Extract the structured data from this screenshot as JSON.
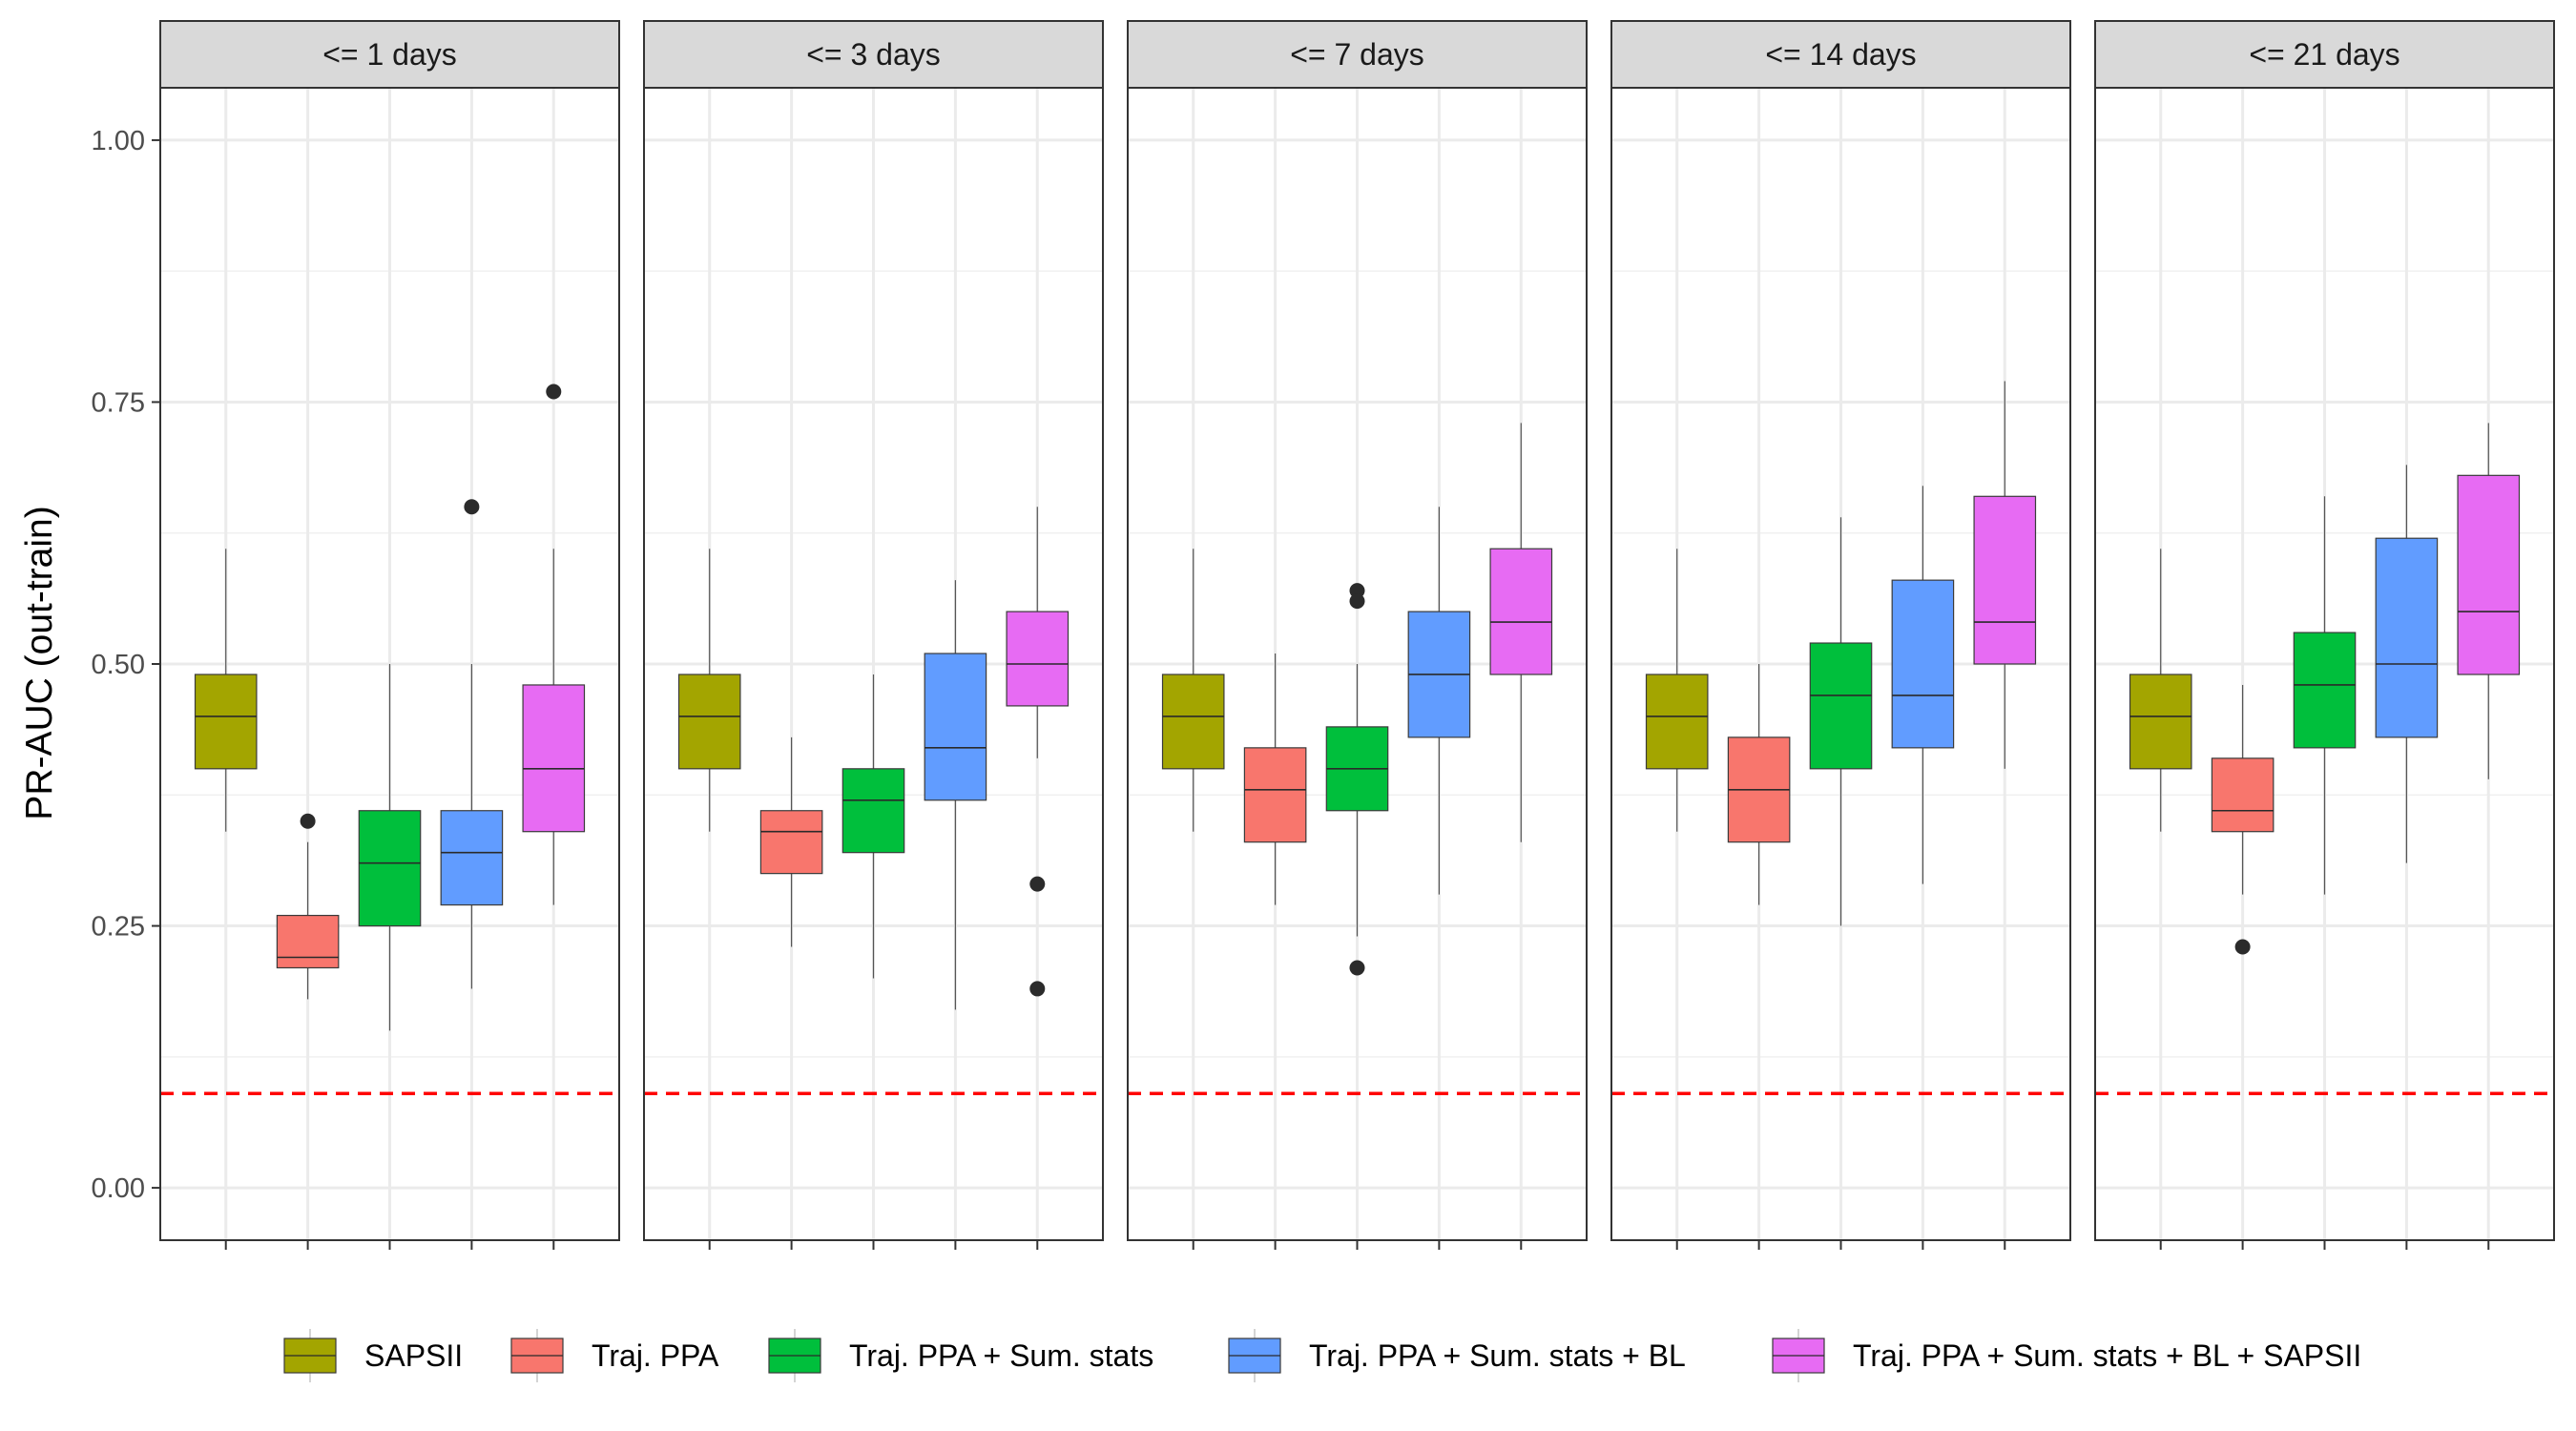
{
  "chart_data": {
    "type": "boxplot",
    "title": "",
    "ylabel": "PR-AUC (out-train)",
    "xlabel": "",
    "ylim": [
      -0.05,
      1.05
    ],
    "yticks": [
      0.0,
      0.25,
      0.5,
      0.75,
      1.0
    ],
    "ytick_labels": [
      "0.00",
      "0.25",
      "0.50",
      "0.75",
      "1.00"
    ],
    "grid": true,
    "legend_position": "bottom",
    "reference_line": {
      "y": 0.09,
      "color": "#ff0000",
      "style": "dashed"
    },
    "series": [
      {
        "name": "SAPSII",
        "color": "#a3a500"
      },
      {
        "name": "Traj. PPA",
        "color": "#f8766d"
      },
      {
        "name": "Traj. PPA + Sum. stats",
        "color": "#00bf3c"
      },
      {
        "name": "Traj. PPA + Sum. stats + BL",
        "color": "#619cff"
      },
      {
        "name": "Traj. PPA + Sum. stats + BL + SAPSII",
        "color": "#e76bf3"
      }
    ],
    "facets": [
      {
        "label": "<= 1 days",
        "boxes": [
          {
            "series": "SAPSII",
            "min": 0.34,
            "q1": 0.4,
            "median": 0.45,
            "q3": 0.49,
            "max": 0.61,
            "outliers": []
          },
          {
            "series": "Traj. PPA",
            "min": 0.18,
            "q1": 0.21,
            "median": 0.22,
            "q3": 0.26,
            "max": 0.33,
            "outliers": [
              0.35
            ]
          },
          {
            "series": "Traj. PPA + Sum. stats",
            "min": 0.15,
            "q1": 0.25,
            "median": 0.31,
            "q3": 0.36,
            "max": 0.5,
            "outliers": []
          },
          {
            "series": "Traj. PPA + Sum. stats + BL",
            "min": 0.19,
            "q1": 0.27,
            "median": 0.32,
            "q3": 0.36,
            "max": 0.5,
            "outliers": [
              0.65
            ]
          },
          {
            "series": "Traj. PPA + Sum. stats + BL + SAPSII",
            "min": 0.27,
            "q1": 0.34,
            "median": 0.4,
            "q3": 0.48,
            "max": 0.61,
            "outliers": [
              0.76
            ]
          }
        ]
      },
      {
        "label": "<= 3 days",
        "boxes": [
          {
            "series": "SAPSII",
            "min": 0.34,
            "q1": 0.4,
            "median": 0.45,
            "q3": 0.49,
            "max": 0.61,
            "outliers": []
          },
          {
            "series": "Traj. PPA",
            "min": 0.23,
            "q1": 0.3,
            "median": 0.34,
            "q3": 0.36,
            "max": 0.43,
            "outliers": []
          },
          {
            "series": "Traj. PPA + Sum. stats",
            "min": 0.2,
            "q1": 0.32,
            "median": 0.37,
            "q3": 0.4,
            "max": 0.49,
            "outliers": []
          },
          {
            "series": "Traj. PPA + Sum. stats + BL",
            "min": 0.17,
            "q1": 0.37,
            "median": 0.42,
            "q3": 0.51,
            "max": 0.58,
            "outliers": []
          },
          {
            "series": "Traj. PPA + Sum. stats + BL + SAPSII",
            "min": 0.41,
            "q1": 0.46,
            "median": 0.5,
            "q3": 0.55,
            "max": 0.65,
            "outliers": [
              0.29,
              0.19
            ]
          }
        ]
      },
      {
        "label": "<= 7 days",
        "boxes": [
          {
            "series": "SAPSII",
            "min": 0.34,
            "q1": 0.4,
            "median": 0.45,
            "q3": 0.49,
            "max": 0.61,
            "outliers": []
          },
          {
            "series": "Traj. PPA",
            "min": 0.27,
            "q1": 0.33,
            "median": 0.38,
            "q3": 0.42,
            "max": 0.51,
            "outliers": []
          },
          {
            "series": "Traj. PPA + Sum. stats",
            "min": 0.24,
            "q1": 0.36,
            "median": 0.4,
            "q3": 0.44,
            "max": 0.5,
            "outliers": [
              0.57,
              0.56,
              0.21
            ]
          },
          {
            "series": "Traj. PPA + Sum. stats + BL",
            "min": 0.28,
            "q1": 0.43,
            "median": 0.49,
            "q3": 0.55,
            "max": 0.65,
            "outliers": []
          },
          {
            "series": "Traj. PPA + Sum. stats + BL + SAPSII",
            "min": 0.33,
            "q1": 0.49,
            "median": 0.54,
            "q3": 0.61,
            "max": 0.73,
            "outliers": []
          }
        ]
      },
      {
        "label": "<= 14 days",
        "boxes": [
          {
            "series": "SAPSII",
            "min": 0.34,
            "q1": 0.4,
            "median": 0.45,
            "q3": 0.49,
            "max": 0.61,
            "outliers": []
          },
          {
            "series": "Traj. PPA",
            "min": 0.27,
            "q1": 0.33,
            "median": 0.38,
            "q3": 0.43,
            "max": 0.5,
            "outliers": []
          },
          {
            "series": "Traj. PPA + Sum. stats",
            "min": 0.25,
            "q1": 0.4,
            "median": 0.47,
            "q3": 0.52,
            "max": 0.64,
            "outliers": []
          },
          {
            "series": "Traj. PPA + Sum. stats + BL",
            "min": 0.29,
            "q1": 0.42,
            "median": 0.47,
            "q3": 0.58,
            "max": 0.67,
            "outliers": []
          },
          {
            "series": "Traj. PPA + Sum. stats + BL + SAPSII",
            "min": 0.4,
            "q1": 0.5,
            "median": 0.54,
            "q3": 0.66,
            "max": 0.77,
            "outliers": []
          }
        ]
      },
      {
        "label": "<= 21 days",
        "boxes": [
          {
            "series": "SAPSII",
            "min": 0.34,
            "q1": 0.4,
            "median": 0.45,
            "q3": 0.49,
            "max": 0.61,
            "outliers": []
          },
          {
            "series": "Traj. PPA",
            "min": 0.28,
            "q1": 0.34,
            "median": 0.36,
            "q3": 0.41,
            "max": 0.48,
            "outliers": [
              0.23
            ]
          },
          {
            "series": "Traj. PPA + Sum. stats",
            "min": 0.28,
            "q1": 0.42,
            "median": 0.48,
            "q3": 0.53,
            "max": 0.66,
            "outliers": []
          },
          {
            "series": "Traj. PPA + Sum. stats + BL",
            "min": 0.31,
            "q1": 0.43,
            "median": 0.5,
            "q3": 0.62,
            "max": 0.69,
            "outliers": []
          },
          {
            "series": "Traj. PPA + Sum. stats + BL + SAPSII",
            "min": 0.39,
            "q1": 0.49,
            "median": 0.55,
            "q3": 0.68,
            "max": 0.73,
            "outliers": []
          }
        ]
      }
    ]
  }
}
